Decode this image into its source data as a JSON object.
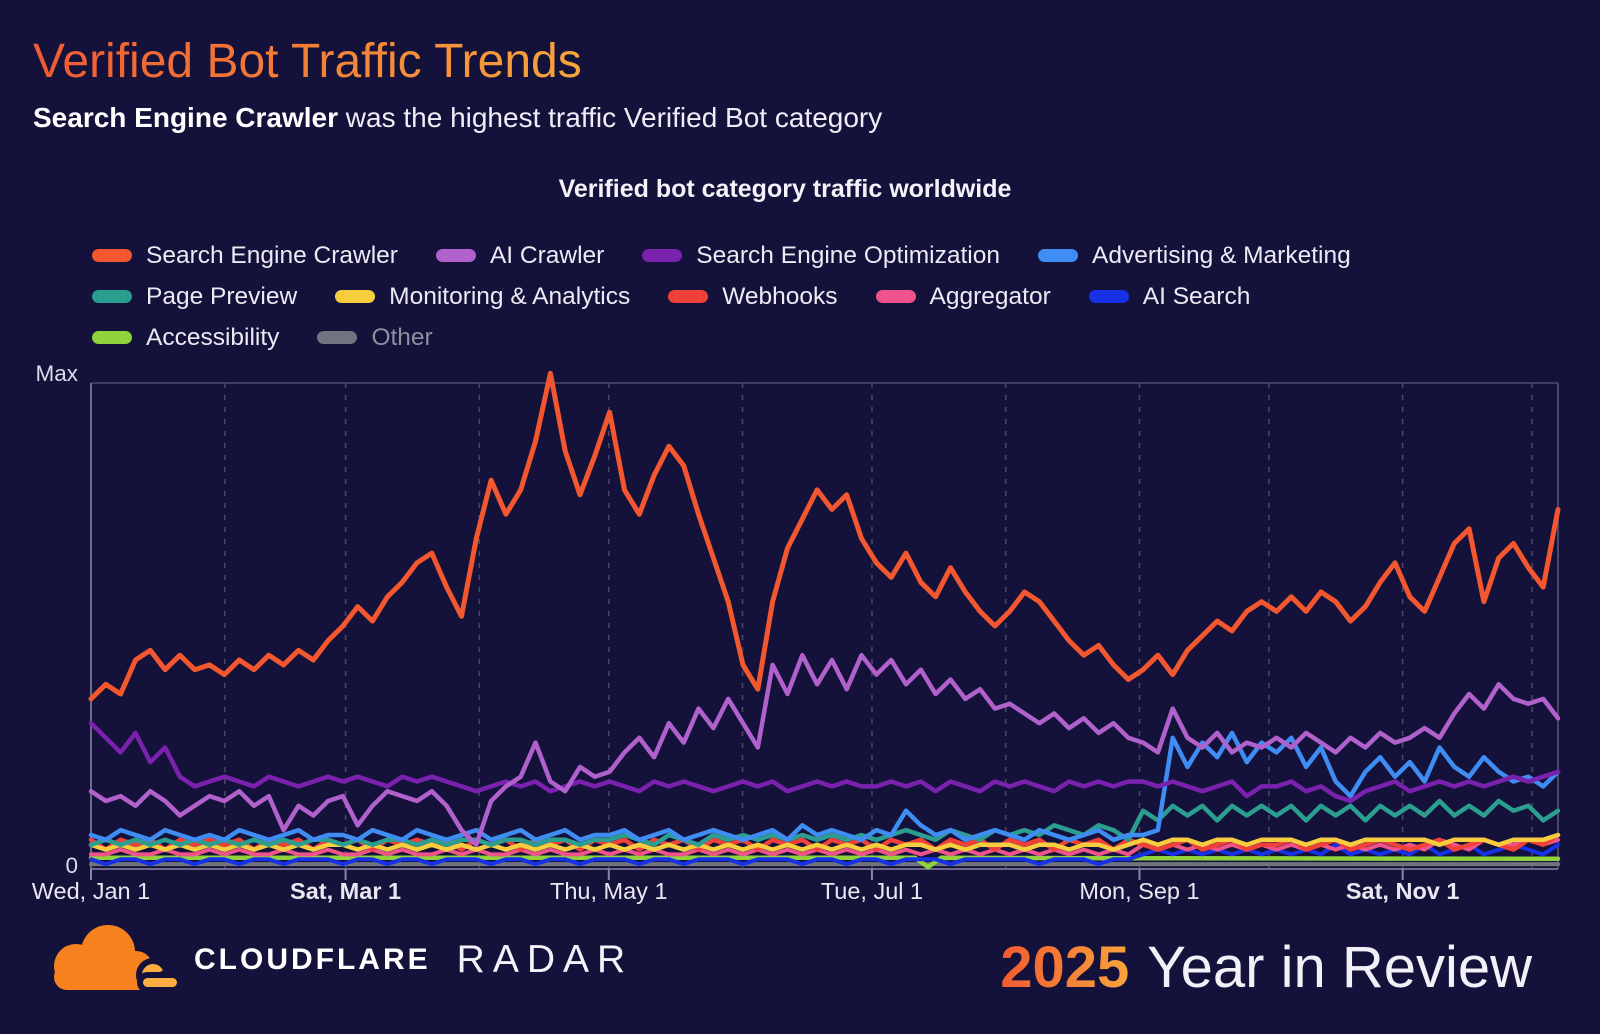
{
  "header": {
    "title": "Verified Bot Traffic Trends",
    "subtitle_bold": "Search Engine Crawler",
    "subtitle_rest": " was the highest traffic Verified Bot category"
  },
  "chart": {
    "title": "Verified bot category traffic worldwide",
    "y_axis_max_label": "Max",
    "y_axis_min_label": "0"
  },
  "chart_data": {
    "type": "line",
    "title": "Verified bot category traffic worldwide",
    "x_unit": "date, Jan 1 2025 through early Dec 2025",
    "x_range_days": [
      0,
      340
    ],
    "ylim": [
      0,
      100
    ],
    "y_scale_note": "relative traffic from 0 to Max",
    "grid": "monthly dashed vertical gridlines",
    "legend_position": "top-left, three rows",
    "x_ticks": [
      {
        "label": "Wed, Jan 1",
        "day": 0,
        "bold": false
      },
      {
        "label": "Sat, Mar 1",
        "day": 59,
        "bold": true
      },
      {
        "label": "Thu, May 1",
        "day": 120,
        "bold": false
      },
      {
        "label": "Tue, Jul 1",
        "day": 181,
        "bold": false
      },
      {
        "label": "Mon, Sep 1",
        "day": 243,
        "bold": false
      },
      {
        "label": "Sat, Nov 1",
        "day": 304,
        "bold": true
      }
    ],
    "month_gridline_days": [
      31,
      59,
      90,
      120,
      151,
      181,
      212,
      243,
      273,
      304,
      334
    ],
    "legend_rows": [
      [
        0,
        1,
        2,
        3
      ],
      [
        4,
        5,
        6,
        7,
        8
      ],
      [
        9,
        10
      ]
    ],
    "series": [
      {
        "name": "Search Engine Crawler",
        "color": "#f2572f",
        "width": 5,
        "values": [
          35,
          38,
          36,
          43,
          45,
          41,
          44,
          41,
          42,
          40,
          43,
          41,
          44,
          42,
          45,
          43,
          47,
          50,
          54,
          51,
          56,
          59,
          63,
          65,
          58,
          52,
          68,
          80,
          73,
          78,
          88,
          102,
          86,
          77,
          85,
          94,
          78,
          73,
          81,
          87,
          83,
          73,
          64,
          55,
          42,
          37,
          55,
          66,
          72,
          78,
          74,
          77,
          68,
          63,
          60,
          65,
          59,
          56,
          62,
          57,
          53,
          50,
          53,
          57,
          55,
          51,
          47,
          44,
          46,
          42,
          39,
          41,
          44,
          40,
          45,
          48,
          51,
          49,
          53,
          55,
          53,
          56,
          53,
          57,
          55,
          51,
          54,
          59,
          63,
          56,
          53,
          60,
          67,
          70,
          55,
          64,
          67,
          62,
          58,
          74
        ]
      },
      {
        "name": "AI Crawler",
        "color": "#b161cc",
        "width": 4.5,
        "values": [
          16,
          14,
          15,
          13,
          16,
          14,
          11,
          13,
          15,
          14,
          16,
          13,
          15,
          8,
          13,
          11,
          14,
          15,
          9,
          13,
          16,
          15,
          14,
          16,
          13,
          8,
          5,
          14,
          17,
          19,
          26,
          18,
          16,
          21,
          19,
          20,
          24,
          27,
          23,
          30,
          26,
          33,
          29,
          35,
          30,
          25,
          42,
          36,
          44,
          38,
          43,
          37,
          44,
          40,
          43,
          38,
          41,
          36,
          39,
          35,
          37,
          33,
          34,
          32,
          30,
          32,
          29,
          31,
          28,
          30,
          27,
          26,
          24,
          33,
          27,
          25,
          28,
          24,
          26,
          25,
          27,
          25,
          28,
          26,
          24,
          27,
          25,
          28,
          26,
          27,
          29,
          27,
          32,
          36,
          33,
          38,
          35,
          34,
          35,
          31
        ]
      },
      {
        "name": "Search Engine Optimization",
        "color": "#7a22ad",
        "width": 4.5,
        "values": [
          30,
          27,
          24,
          28,
          22,
          25,
          19,
          17,
          18,
          19,
          18,
          17,
          19,
          18,
          17,
          18,
          19,
          18,
          19,
          18,
          17,
          19,
          18,
          19,
          18,
          17,
          16,
          17,
          18,
          17,
          18,
          16,
          17,
          18,
          17,
          18,
          17,
          16,
          18,
          17,
          18,
          17,
          16,
          17,
          18,
          17,
          18,
          16,
          17,
          18,
          17,
          18,
          17,
          17,
          18,
          17,
          18,
          16,
          18,
          17,
          16,
          18,
          17,
          18,
          17,
          16,
          18,
          17,
          18,
          17,
          18,
          18,
          17,
          18,
          17,
          16,
          17,
          18,
          15,
          17,
          17,
          18,
          16,
          17,
          15,
          14,
          16,
          17,
          18,
          16,
          17,
          18,
          17,
          18,
          17,
          18,
          19,
          18,
          19,
          20
        ]
      },
      {
        "name": "Advertising & Marketing",
        "color": "#3f8cf2",
        "width": 4.5,
        "values": [
          7,
          6,
          8,
          7,
          6,
          8,
          7,
          6,
          7,
          6,
          8,
          7,
          6,
          7,
          8,
          6,
          7,
          7,
          6,
          8,
          7,
          6,
          8,
          7,
          6,
          7,
          8,
          6,
          7,
          8,
          6,
          7,
          8,
          6,
          7,
          7,
          8,
          6,
          7,
          8,
          6,
          7,
          8,
          7,
          6,
          7,
          8,
          6,
          9,
          7,
          8,
          7,
          6,
          8,
          7,
          12,
          9,
          7,
          8,
          6,
          7,
          8,
          7,
          6,
          8,
          7,
          6,
          7,
          8,
          6,
          7,
          7,
          8,
          27,
          21,
          26,
          23,
          28,
          22,
          26,
          24,
          27,
          21,
          25,
          18,
          15,
          20,
          23,
          19,
          22,
          18,
          25,
          21,
          19,
          23,
          20,
          18,
          19,
          17,
          20
        ]
      },
      {
        "name": "Page Preview",
        "color": "#2b9e8f",
        "width": 4.5,
        "values": [
          5,
          6,
          5,
          6,
          5,
          6,
          5,
          6,
          5,
          6,
          5,
          6,
          5,
          6,
          5,
          6,
          6,
          5,
          6,
          5,
          6,
          6,
          5,
          6,
          5,
          6,
          6,
          5,
          6,
          6,
          5,
          6,
          6,
          5,
          6,
          6,
          7,
          6,
          5,
          7,
          6,
          5,
          7,
          6,
          7,
          6,
          7,
          6,
          7,
          6,
          7,
          6,
          7,
          6,
          7,
          8,
          7,
          6,
          8,
          7,
          6,
          8,
          7,
          8,
          7,
          9,
          8,
          7,
          9,
          8,
          6,
          12,
          10,
          13,
          11,
          13,
          10,
          13,
          11,
          13,
          11,
          13,
          10,
          13,
          11,
          13,
          10,
          13,
          11,
          13,
          11,
          14,
          11,
          13,
          11,
          14,
          12,
          13,
          10,
          12
        ]
      },
      {
        "name": "Monitoring & Analytics",
        "color": "#f6cd3e",
        "width": 4.5,
        "values": [
          5,
          4,
          5,
          4,
          5,
          4,
          5,
          4,
          5,
          4,
          5,
          4,
          5,
          4,
          5,
          4,
          5,
          5,
          4,
          5,
          4,
          5,
          4,
          5,
          4,
          5,
          4,
          5,
          4,
          5,
          4,
          5,
          4,
          5,
          4,
          5,
          4,
          5,
          4,
          5,
          4,
          5,
          4,
          5,
          4,
          5,
          4,
          5,
          4,
          5,
          4,
          5,
          4,
          5,
          4,
          5,
          5,
          4,
          5,
          4,
          5,
          5,
          5,
          4,
          5,
          5,
          4,
          5,
          5,
          4,
          5,
          6,
          5,
          6,
          6,
          5,
          6,
          6,
          5,
          6,
          6,
          6,
          5,
          6,
          6,
          5,
          6,
          6,
          6,
          6,
          6,
          5,
          6,
          6,
          6,
          5,
          6,
          6,
          6,
          7
        ]
      },
      {
        "name": "Webhooks",
        "color": "#f0403a",
        "width": 4.5,
        "values": [
          6,
          4,
          6,
          5,
          6,
          4,
          6,
          5,
          6,
          5,
          6,
          4,
          6,
          5,
          6,
          4,
          6,
          5,
          6,
          4,
          6,
          5,
          6,
          5,
          6,
          4,
          6,
          5,
          6,
          4,
          6,
          5,
          6,
          4,
          6,
          5,
          6,
          4,
          6,
          5,
          6,
          4,
          6,
          5,
          6,
          4,
          6,
          5,
          6,
          4,
          6,
          5,
          6,
          4,
          6,
          5,
          6,
          4,
          6,
          5,
          6,
          4,
          6,
          5,
          6,
          4,
          6,
          5,
          6,
          4,
          6,
          5,
          4,
          5,
          6,
          4,
          5,
          6,
          4,
          5,
          5,
          6,
          4,
          5,
          6,
          4,
          5,
          6,
          5,
          4,
          5,
          6,
          4,
          5,
          6,
          5,
          4,
          6,
          5,
          7
        ]
      },
      {
        "name": "Aggregator",
        "color": "#f0538c",
        "width": 4,
        "values": [
          3,
          3,
          4,
          3,
          3,
          4,
          3,
          3,
          4,
          3,
          4,
          3,
          3,
          4,
          3,
          3,
          4,
          3,
          3,
          4,
          3,
          4,
          3,
          3,
          4,
          3,
          4,
          3,
          3,
          4,
          3,
          4,
          3,
          3,
          4,
          3,
          4,
          3,
          4,
          3,
          3,
          4,
          3,
          4,
          3,
          4,
          3,
          4,
          3,
          4,
          3,
          4,
          3,
          4,
          3,
          4,
          3,
          4,
          3,
          4,
          3,
          4,
          3,
          4,
          3,
          4,
          3,
          4,
          3,
          4,
          3,
          5,
          4,
          5,
          4,
          5,
          4,
          5,
          4,
          5,
          4,
          5,
          4,
          5,
          4,
          5,
          4,
          5,
          4,
          5,
          4,
          6,
          5,
          4,
          6,
          5,
          5,
          6,
          5,
          6
        ]
      },
      {
        "name": "AI Search",
        "color": "#1631e6",
        "width": 4,
        "values": [
          2,
          1,
          2,
          2,
          1,
          2,
          2,
          1,
          2,
          2,
          1,
          2,
          2,
          1,
          2,
          2,
          2,
          1,
          2,
          2,
          1,
          2,
          2,
          1,
          2,
          2,
          2,
          1,
          2,
          2,
          1,
          2,
          2,
          1,
          2,
          2,
          2,
          1,
          2,
          2,
          1,
          2,
          2,
          2,
          1,
          2,
          2,
          2,
          1,
          2,
          2,
          1,
          2,
          2,
          1,
          2,
          2,
          2,
          1,
          2,
          2,
          2,
          2,
          2,
          1,
          2,
          2,
          2,
          1,
          2,
          2,
          3,
          4,
          3,
          4,
          3,
          4,
          3,
          4,
          3,
          4,
          3,
          4,
          3,
          5,
          3,
          4,
          3,
          4,
          3,
          5,
          3,
          4,
          5,
          3,
          4,
          5,
          4,
          3,
          5
        ]
      },
      {
        "name": "Accessibility",
        "color": "#8ed33b",
        "width": 4.5,
        "x": [
          0,
          60,
          120,
          185,
          191,
          194,
          197,
          250,
          340
        ],
        "values": [
          2.3,
          2.3,
          2.3,
          2.3,
          2.3,
          0.4,
          2.3,
          2.2,
          2.1
        ]
      },
      {
        "name": "Other",
        "color": "#70747f",
        "width": 4,
        "label_muted": true,
        "x": [
          0,
          340
        ],
        "values": [
          1,
          1
        ]
      }
    ]
  },
  "footer": {
    "brand": "CLOUDFLARE",
    "product": "RADAR",
    "year": "2025",
    "tagline": "Year in Review"
  }
}
